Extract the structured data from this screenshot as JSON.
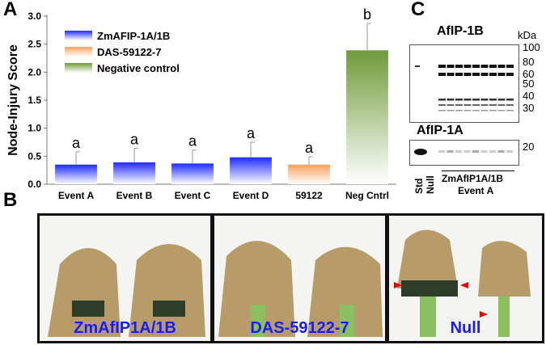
{
  "panels": {
    "a": "A",
    "b": "B",
    "c": "C"
  },
  "chart_data": {
    "type": "bar",
    "ylabel": "Node-Injury Score",
    "ylim": [
      0,
      3.0
    ],
    "yticks": [
      "0.0",
      "0.5",
      "1.0",
      "1.5",
      "2.0",
      "2.5",
      "3.0"
    ],
    "categories": [
      "Event A",
      "Event B",
      "Event C",
      "Event D",
      "59122",
      "Neg Cntrl"
    ],
    "values": [
      0.35,
      0.39,
      0.37,
      0.48,
      0.35,
      2.39
    ],
    "errors": [
      0.23,
      0.25,
      0.24,
      0.27,
      0.14,
      0.48
    ],
    "letters": [
      "a",
      "a",
      "a",
      "a",
      "a",
      "b"
    ],
    "groups": [
      0,
      0,
      0,
      0,
      1,
      2
    ],
    "legend": [
      {
        "name": "ZmAFIP-1A/1B",
        "color": "#1f2bff"
      },
      {
        "name": "DAS-59122-7",
        "color": "#f5a15c"
      },
      {
        "name": "Negative control",
        "color": "#6f9a3a"
      }
    ],
    "legend_position": "top-left",
    "grid": false
  },
  "blot": {
    "title_1b": "AfIP-1B",
    "title_1a": "AfIP-1A",
    "kda": "kDa",
    "markers_1b": [
      "100",
      "80",
      "60",
      "50",
      "40",
      "30"
    ],
    "markers_1a": [
      "20"
    ],
    "lanes": [
      "Std",
      "Null"
    ],
    "group_label": "ZmAfIP1A/1B",
    "event_label": "Event A"
  },
  "photos": [
    {
      "label": "ZmAfIP1A/1B"
    },
    {
      "label": "DAS-59122-7"
    },
    {
      "label": "Null"
    }
  ]
}
